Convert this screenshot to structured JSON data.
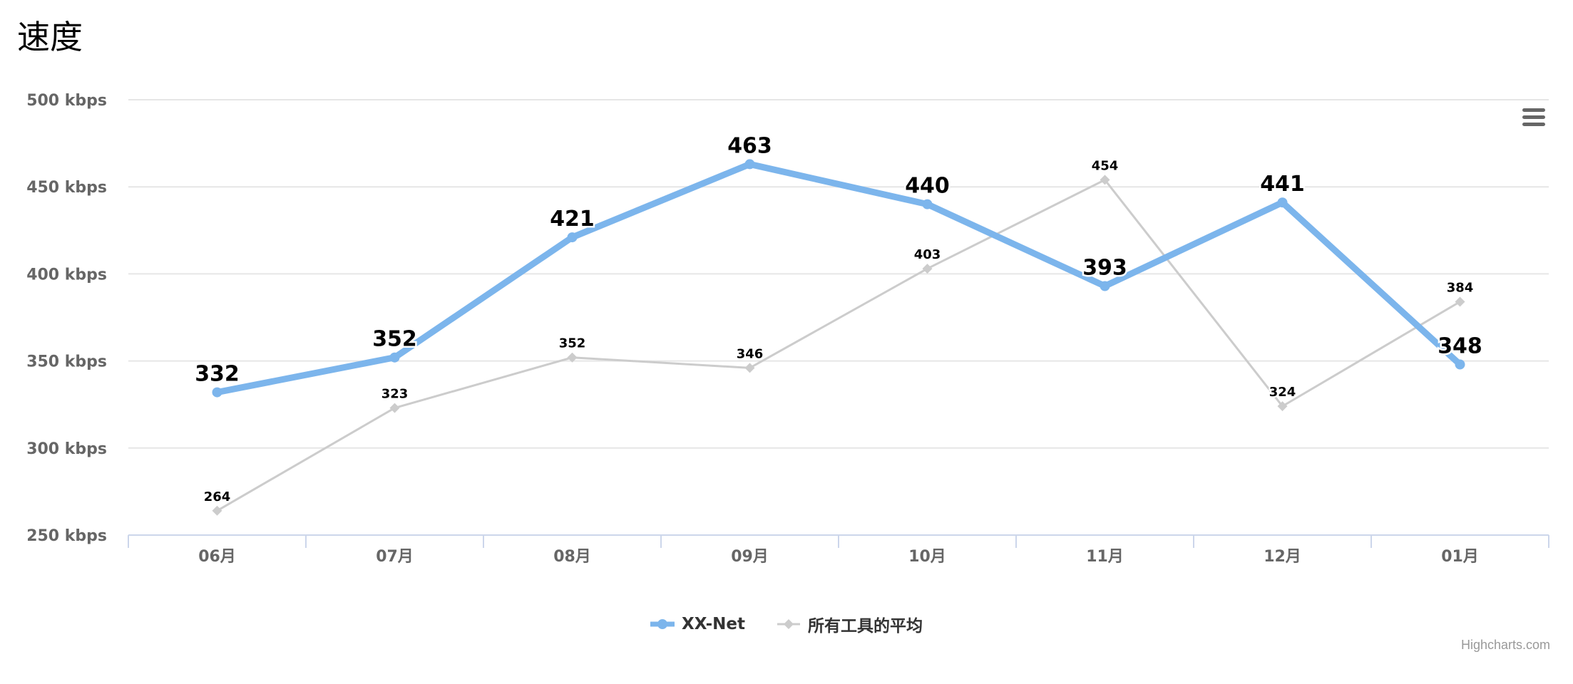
{
  "title": "速度",
  "colors": {
    "primary": "#7cb5ec",
    "secondary": "#cccccc",
    "grid": "#e6e6e6",
    "axis_line": "#ccd6eb",
    "tick_label": "#666666"
  },
  "chart_data": {
    "type": "line",
    "title": "速度",
    "categories": [
      "06月",
      "07月",
      "08月",
      "09月",
      "10月",
      "11月",
      "12月",
      "01月"
    ],
    "y_ticks": [
      "250 kbps",
      "300 kbps",
      "350 kbps",
      "400 kbps",
      "450 kbps",
      "500 kbps"
    ],
    "ylim": [
      250,
      500
    ],
    "grid": true,
    "legend_position": "bottom-center",
    "series": [
      {
        "name": "XX-Net",
        "values": [
          332,
          352,
          421,
          463,
          440,
          393,
          441,
          348
        ],
        "color": "#7cb5ec",
        "marker": "circle"
      },
      {
        "name": "所有工具的平均",
        "values": [
          264,
          323,
          352,
          346,
          403,
          454,
          324,
          384
        ],
        "color": "#cccccc",
        "marker": "diamond"
      }
    ]
  },
  "legend": {
    "items": [
      {
        "label": "XX-Net",
        "icon": "circle-marker-icon"
      },
      {
        "label": "所有工具的平均",
        "icon": "diamond-marker-icon"
      }
    ]
  },
  "menu": {
    "icon": "hamburger-menu-icon"
  },
  "credits": "Highcharts.com"
}
